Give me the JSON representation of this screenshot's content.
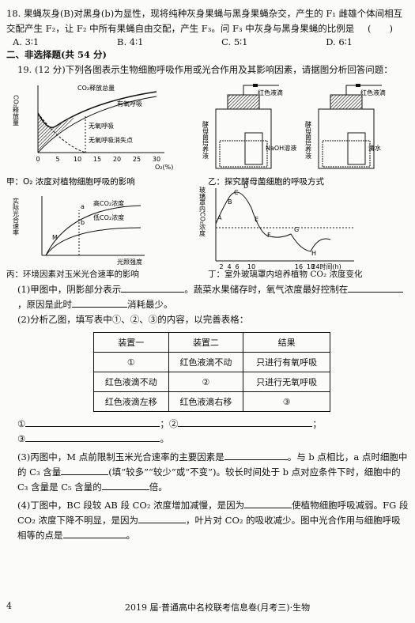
{
  "q18": {
    "stem": "18. 果蝇灰身(B)对黑身(b)为显性，现将纯种灰身果蝇与黑身果蝇杂交，产生的 F₁ 雌雄个体间相互交配产生 F₂，让 F₂ 中所有果蝇自由交配，产生 F₃。问 F₃ 中灰身与黑身果蝇的比例是",
    "bracket": "(　　)",
    "options": [
      "A. 3∶1",
      "B. 4∶1",
      "C. 5∶1",
      "D. 6∶1"
    ]
  },
  "section": "二、非选择题(共 54 分)",
  "q19": {
    "intro": "19. (12 分)下列各图表示生物细胞呼吸作用或光合作用及其影响因素，请据图分析回答问题：",
    "fig_jia": {
      "y_label": "CO₂释放量",
      "curve_total": "CO₂释放总量",
      "curve_aerobic": "有氧呼吸",
      "curve_anaerobic": "无氧呼吸",
      "point": "无氧呼吸消失点",
      "x_ticks": [
        "0",
        "5",
        "10",
        "15",
        "20",
        "25",
        "30"
      ],
      "x_label": "O₂(%)",
      "caption": "甲：O₂ 浓度对植物细胞呼吸的影响"
    },
    "fig_yi": {
      "devices": [
        {
          "drop": "红色液滴",
          "culture": "酵母菌培养液",
          "beaker": "NaOH溶液"
        },
        {
          "drop": "红色液滴",
          "culture": "酵母菌培养液",
          "beaker": "清水"
        }
      ],
      "caption": "乙：探究酵母菌细胞的呼吸方式"
    },
    "fig_bing": {
      "y_label": "实际光合速率",
      "high": "高CO₂浓度",
      "low": "低CO₂浓度",
      "points": [
        "a",
        "b",
        "M"
      ],
      "x_label": "光照强度",
      "caption": "丙：环境因素对玉米光合速率的影响"
    },
    "fig_ding": {
      "y_label": "玻璃罩内CO₂浓度",
      "points": [
        "A",
        "B",
        "C",
        "D",
        "E",
        "F",
        "G",
        "H"
      ],
      "x_ticks": [
        "2",
        "4",
        "6",
        "10",
        "16",
        "18",
        "24时间(h)"
      ],
      "caption": "丁：室外玻璃罩内培养植物 CO₂ 浓度变化"
    },
    "part1": [
      "(1)甲图中，阴影部分表示",
      "。蔬菜水果储存时，氧气浓度最好控制在",
      "，原因是此时",
      "消耗最少。"
    ],
    "part2": "(2)分析乙图，填写表中①、②、③的内容，以完善表格：",
    "table": {
      "header": [
        "装置一",
        "装置二",
        "结果"
      ],
      "rows": [
        [
          "①",
          "红色液滴不动",
          "只进行有氧呼吸"
        ],
        [
          "红色液滴不动",
          "②",
          "只进行无氧呼吸"
        ],
        [
          "红色液滴左移",
          "红色液滴右移",
          "③"
        ]
      ]
    },
    "answers": [
      "①",
      "②",
      "③"
    ],
    "part3": [
      "(3)丙图中，M 点前限制玉米光合速率的主要因素是",
      "。与 b 点相比，a 点时细胞中的 C₃ 含量",
      "(填“较多”“较少”或“不变”)。较长时间处于 b 点对应条件下时，细胞中的 C₃ 含量是 C₅ 含量的",
      "倍。"
    ],
    "part4": [
      "(4)丁图中，BC 段较 AB 段 CO₂ 浓度增加减慢，是因为",
      "使植物细胞呼吸减弱。FG 段 CO₂ 浓度下降不明显，是因为",
      "，叶片对 CO₂ 的吸收减少。图中光合作用与细胞呼吸相等的点是",
      "。"
    ]
  },
  "footer": {
    "page": "4",
    "title": "2019 届·普通高中名校联考信息卷(月考三)·生物"
  }
}
